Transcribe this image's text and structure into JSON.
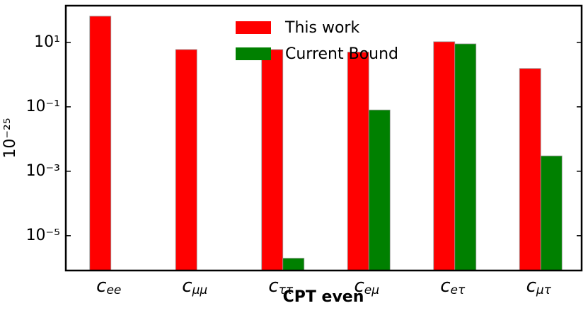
{
  "chart_data": {
    "type": "bar",
    "log_scale_y": true,
    "xlabel": "CPT even",
    "ylabel": "10⁻²⁵",
    "categories": [
      "c_ee",
      "c_μμ",
      "c_ττ",
      "c_eμ",
      "c_eτ",
      "c_μτ"
    ],
    "series": [
      {
        "name": "This work",
        "color": "#ff0000",
        "values": [
          65,
          6,
          6,
          5,
          10.5,
          1.55
        ]
      },
      {
        "name": "Current Bound",
        "color": "#008000",
        "values": [
          null,
          null,
          2e-06,
          0.08,
          9,
          0.003
        ]
      }
    ],
    "ylim": [
      8.3e-07,
      138
    ],
    "yticks": [
      {
        "value": 1e-05,
        "label": "10⁻⁵"
      },
      {
        "value": 0.001,
        "label": "10⁻³"
      },
      {
        "value": 0.1,
        "label": "10⁻¹"
      },
      {
        "value": 10,
        "label": "10¹"
      }
    ],
    "legend": "upper center"
  }
}
